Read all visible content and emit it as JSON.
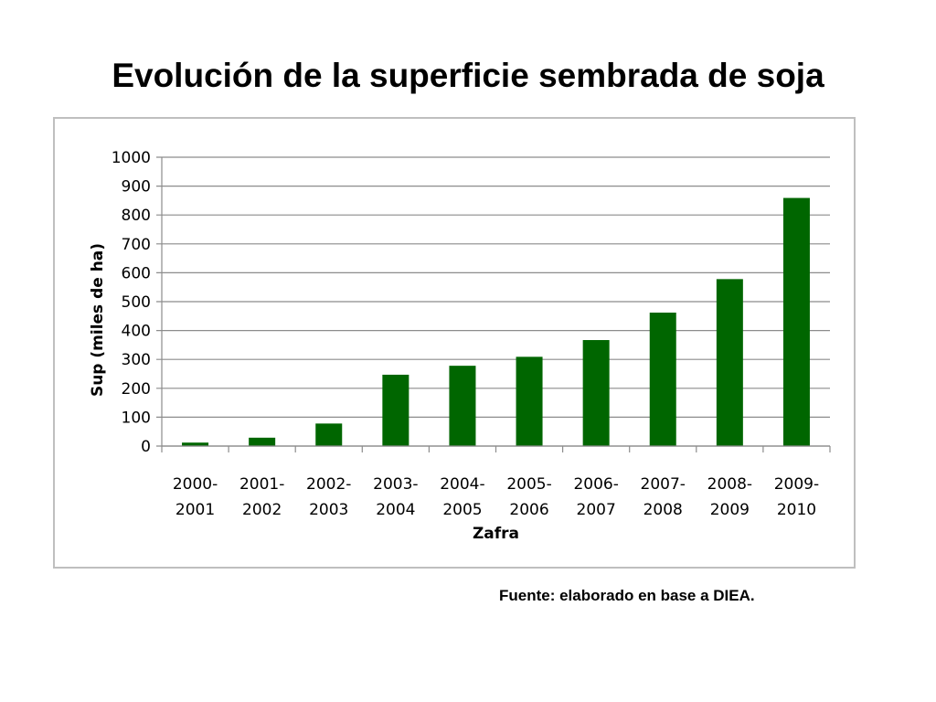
{
  "slide": {
    "title": "Evolución de la superficie sembrada de soja",
    "source": "Fuente: elaborado en base a DIEA."
  },
  "chart_data": {
    "type": "bar",
    "title": "",
    "xlabel": "Zafra",
    "ylabel": "Sup (miles de ha)",
    "categories": [
      [
        "2000-",
        "2001"
      ],
      [
        "2001-",
        "2002"
      ],
      [
        "2002-",
        "2003"
      ],
      [
        "2003-",
        "2004"
      ],
      [
        "2004-",
        "2005"
      ],
      [
        "2005-",
        "2006"
      ],
      [
        "2006-",
        "2007"
      ],
      [
        "2007-",
        "2008"
      ],
      [
        "2008-",
        "2009"
      ],
      [
        "2009-",
        "2010"
      ]
    ],
    "values": [
      12,
      29,
      78,
      247,
      278,
      309,
      367,
      462,
      578,
      859
    ],
    "ylim": [
      0,
      1000
    ],
    "yticks": [
      0,
      100,
      200,
      300,
      400,
      500,
      600,
      700,
      800,
      900,
      1000
    ],
    "grid": true,
    "bar_color": "#006600",
    "grid_color": "#8c8c8c"
  }
}
